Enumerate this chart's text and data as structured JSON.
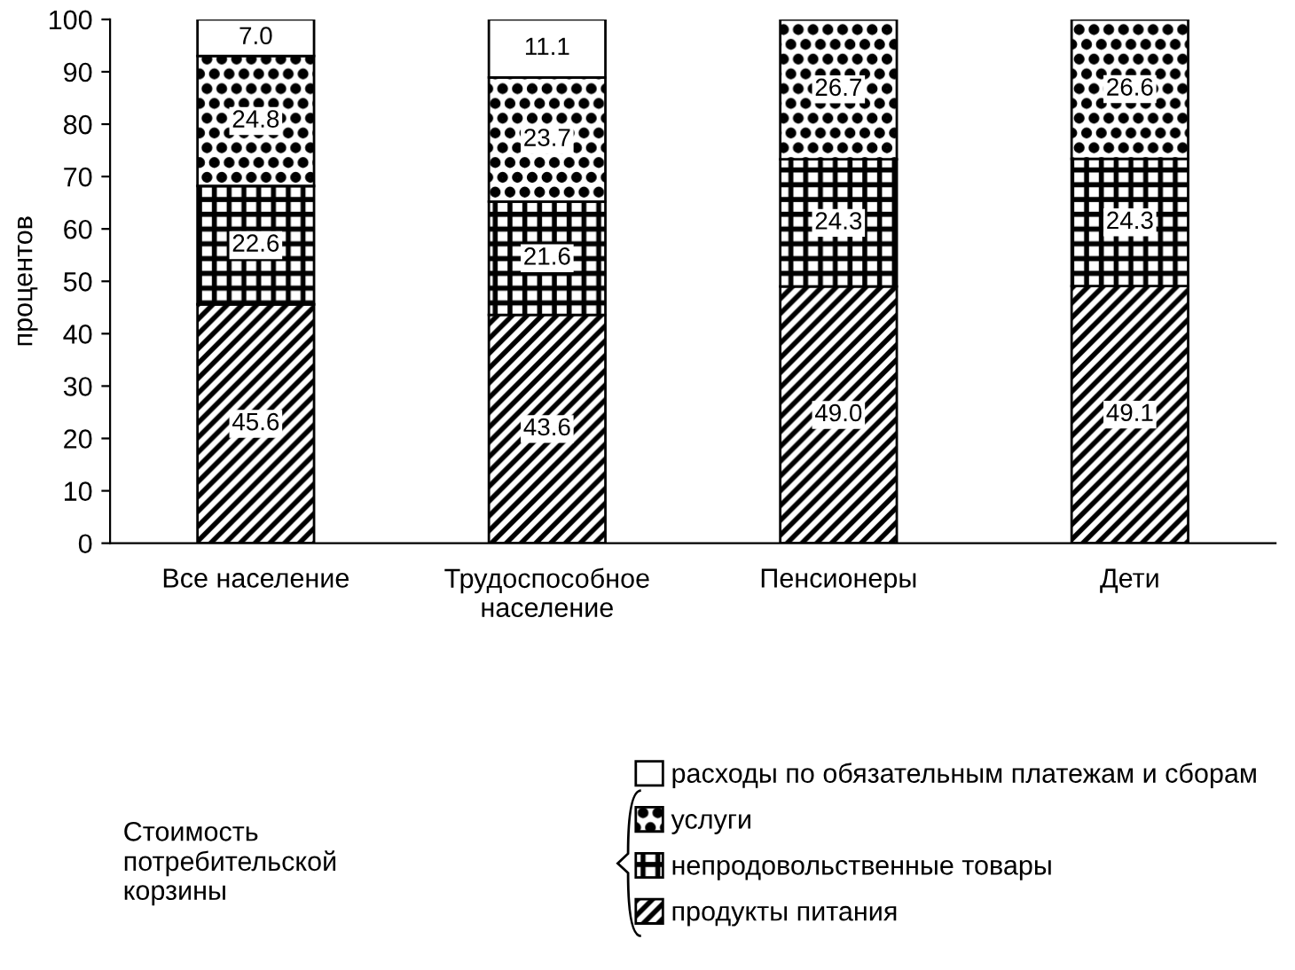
{
  "chart_data": {
    "type": "bar",
    "stacked": true,
    "ylabel": "процентов",
    "categories": [
      "Все население",
      "Трудоспособное\nнаселение",
      "Пенсионеры",
      "Дети"
    ],
    "series": [
      {
        "name": "продукты питания",
        "color": "#000000",
        "values": [
          45.6,
          43.6,
          49.0,
          49.1
        ],
        "value_labels": [
          "45.6",
          "43.6",
          "49.0",
          "49.1"
        ]
      },
      {
        "name": "непродовольственные товары",
        "color": "#000000",
        "values": [
          22.6,
          21.6,
          24.3,
          24.3
        ],
        "value_labels": [
          "22.6",
          "21.6",
          "24.3",
          "24.3"
        ]
      },
      {
        "name": "услуги",
        "color": "#000000",
        "values": [
          24.8,
          23.7,
          26.7,
          26.6
        ],
        "value_labels": [
          "24.8",
          "23.7",
          "26.7",
          "26.6"
        ]
      },
      {
        "name": "расходы по обязательным платежам и сборам",
        "color": "#ffffff",
        "values": [
          7.0,
          11.1,
          null,
          null
        ],
        "value_labels": [
          "7.0",
          "11.1",
          null,
          null
        ]
      }
    ],
    "ylim": [
      0,
      100
    ],
    "yticks": [
      0,
      10,
      20,
      30,
      40,
      50,
      60,
      70,
      80,
      90,
      100
    ],
    "grid": false,
    "legend": "bottom right",
    "annotations": [
      "Стоимость\nпотребительской\nкорзины"
    ]
  }
}
